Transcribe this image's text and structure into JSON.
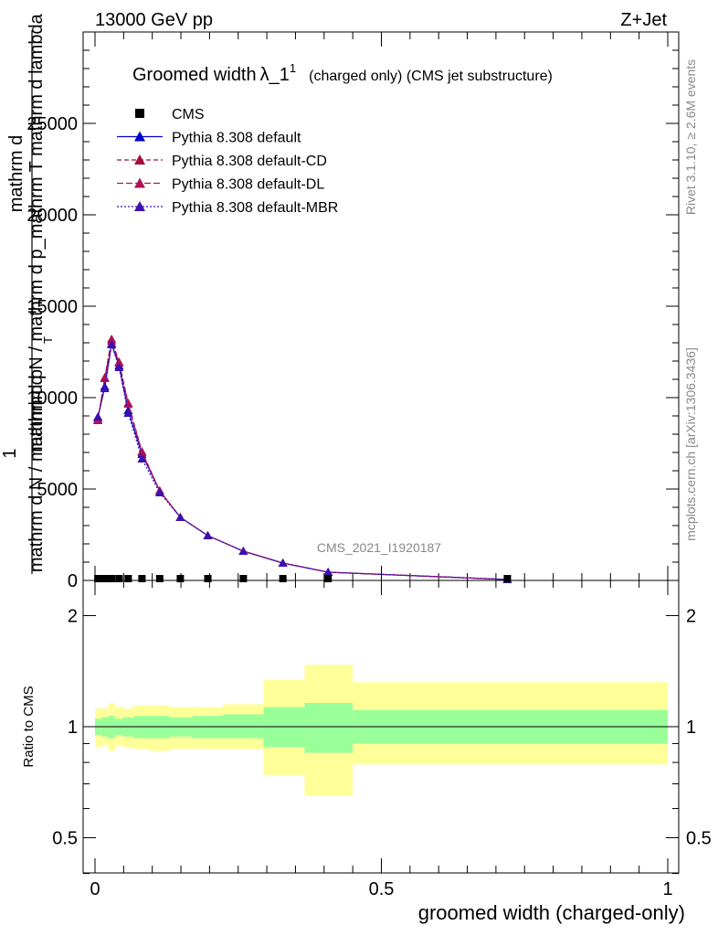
{
  "header": {
    "left": "13000 GeV pp",
    "right": "Z+Jet"
  },
  "side_labels": {
    "rivet": "Rivet 3.1.10, ≥ 2.6M events",
    "mcplots": "mcplots.cern.ch [arXiv:1306.3436]"
  },
  "watermark": "CMS_2021_I1920187",
  "chart_data": [
    {
      "type": "line",
      "title_main": "Groomed width",
      "title_lambda": "λ_1",
      "title_sup": "1",
      "title_rest": "(charged only) (CMS jet substructure)",
      "ylabel_lines": [
        "mathrm d N / mathrm d p_mathrm T mathrm d lambda",
        "mathrm d",
        "1",
        "mathrm d N / mathrm d p",
        "T"
      ],
      "xlabel": "groomed width (charged-only)",
      "xlim": [
        0,
        1
      ],
      "ylim": [
        0,
        30000
      ],
      "yticks": [
        0,
        5000,
        10000,
        15000,
        20000,
        25000
      ],
      "ytick_labels": [
        "0",
        "5000",
        "10000",
        "15000",
        "20000",
        "25000"
      ],
      "legend": {
        "placement": "top-left",
        "entries": [
          "CMS",
          "Pythia 8.308 default",
          "Pythia 8.308 default-CD",
          "Pythia 8.308 default-DL",
          "Pythia 8.308 default-MBR"
        ]
      },
      "x": [
        0.005,
        0.017,
        0.029,
        0.042,
        0.058,
        0.082,
        0.113,
        0.149,
        0.197,
        0.259,
        0.328,
        0.407,
        0.72
      ],
      "data_cms": [
        0,
        0,
        0,
        0,
        0,
        0,
        0,
        0,
        0,
        0,
        0,
        0,
        0
      ],
      "series": [
        {
          "name": "Pythia 8.308 default",
          "color": "#0000cc",
          "values": [
            8900,
            10600,
            12950,
            11750,
            9300,
            6900,
            4900,
            3450,
            2450,
            1600,
            950,
            450,
            50
          ]
        },
        {
          "name": "Pythia 8.308 default-CD",
          "color": "#a0103a",
          "values": [
            8750,
            11100,
            13200,
            11950,
            9700,
            7050,
            4900,
            3450,
            2450,
            1600,
            950,
            450,
            50
          ]
        },
        {
          "name": "Pythia 8.308 default-DL",
          "color": "#b0105a",
          "values": [
            8800,
            11050,
            13100,
            11900,
            9650,
            7000,
            4900,
            3450,
            2450,
            1600,
            950,
            450,
            50
          ]
        },
        {
          "name": "Pythia 8.308 default-MBR",
          "color": "#3a10b0",
          "values": [
            8950,
            10500,
            12900,
            11650,
            9150,
            6650,
            4800,
            3450,
            2450,
            1600,
            950,
            450,
            50
          ]
        }
      ]
    },
    {
      "type": "area",
      "ylabel": "Ratio to CMS",
      "xlabel": "groomed width (charged-only)",
      "xlim": [
        0,
        1
      ],
      "ylim": [
        0.38,
        2.25
      ],
      "ytick_labels": [
        "0.5",
        "1",
        "2"
      ],
      "xtick_labels": [
        "0",
        "0.5",
        "1"
      ],
      "bins": [
        [
          0.0,
          0.011
        ],
        [
          0.011,
          0.023
        ],
        [
          0.023,
          0.035
        ],
        [
          0.035,
          0.048
        ],
        [
          0.048,
          0.068
        ],
        [
          0.068,
          0.095
        ],
        [
          0.095,
          0.13
        ],
        [
          0.13,
          0.17
        ],
        [
          0.17,
          0.224
        ],
        [
          0.224,
          0.294
        ],
        [
          0.294,
          0.366
        ],
        [
          0.366,
          0.45
        ],
        [
          0.45,
          1.0
        ]
      ],
      "inner_band": [
        [
          0.95,
          1.05
        ],
        [
          0.94,
          1.06
        ],
        [
          0.93,
          1.07
        ],
        [
          0.95,
          1.05
        ],
        [
          0.94,
          1.06
        ],
        [
          0.93,
          1.07
        ],
        [
          0.93,
          1.07
        ],
        [
          0.94,
          1.06
        ],
        [
          0.93,
          1.07
        ],
        [
          0.93,
          1.08
        ],
        [
          0.88,
          1.13
        ],
        [
          0.85,
          1.16
        ],
        [
          0.9,
          1.11
        ]
      ],
      "outer_band": [
        [
          0.88,
          1.12
        ],
        [
          0.89,
          1.12
        ],
        [
          0.86,
          1.16
        ],
        [
          0.89,
          1.13
        ],
        [
          0.88,
          1.12
        ],
        [
          0.87,
          1.14
        ],
        [
          0.86,
          1.14
        ],
        [
          0.87,
          1.13
        ],
        [
          0.87,
          1.13
        ],
        [
          0.87,
          1.15
        ],
        [
          0.74,
          1.34
        ],
        [
          0.65,
          1.47
        ],
        [
          0.79,
          1.32
        ]
      ],
      "ratio_line": 1.0
    }
  ]
}
